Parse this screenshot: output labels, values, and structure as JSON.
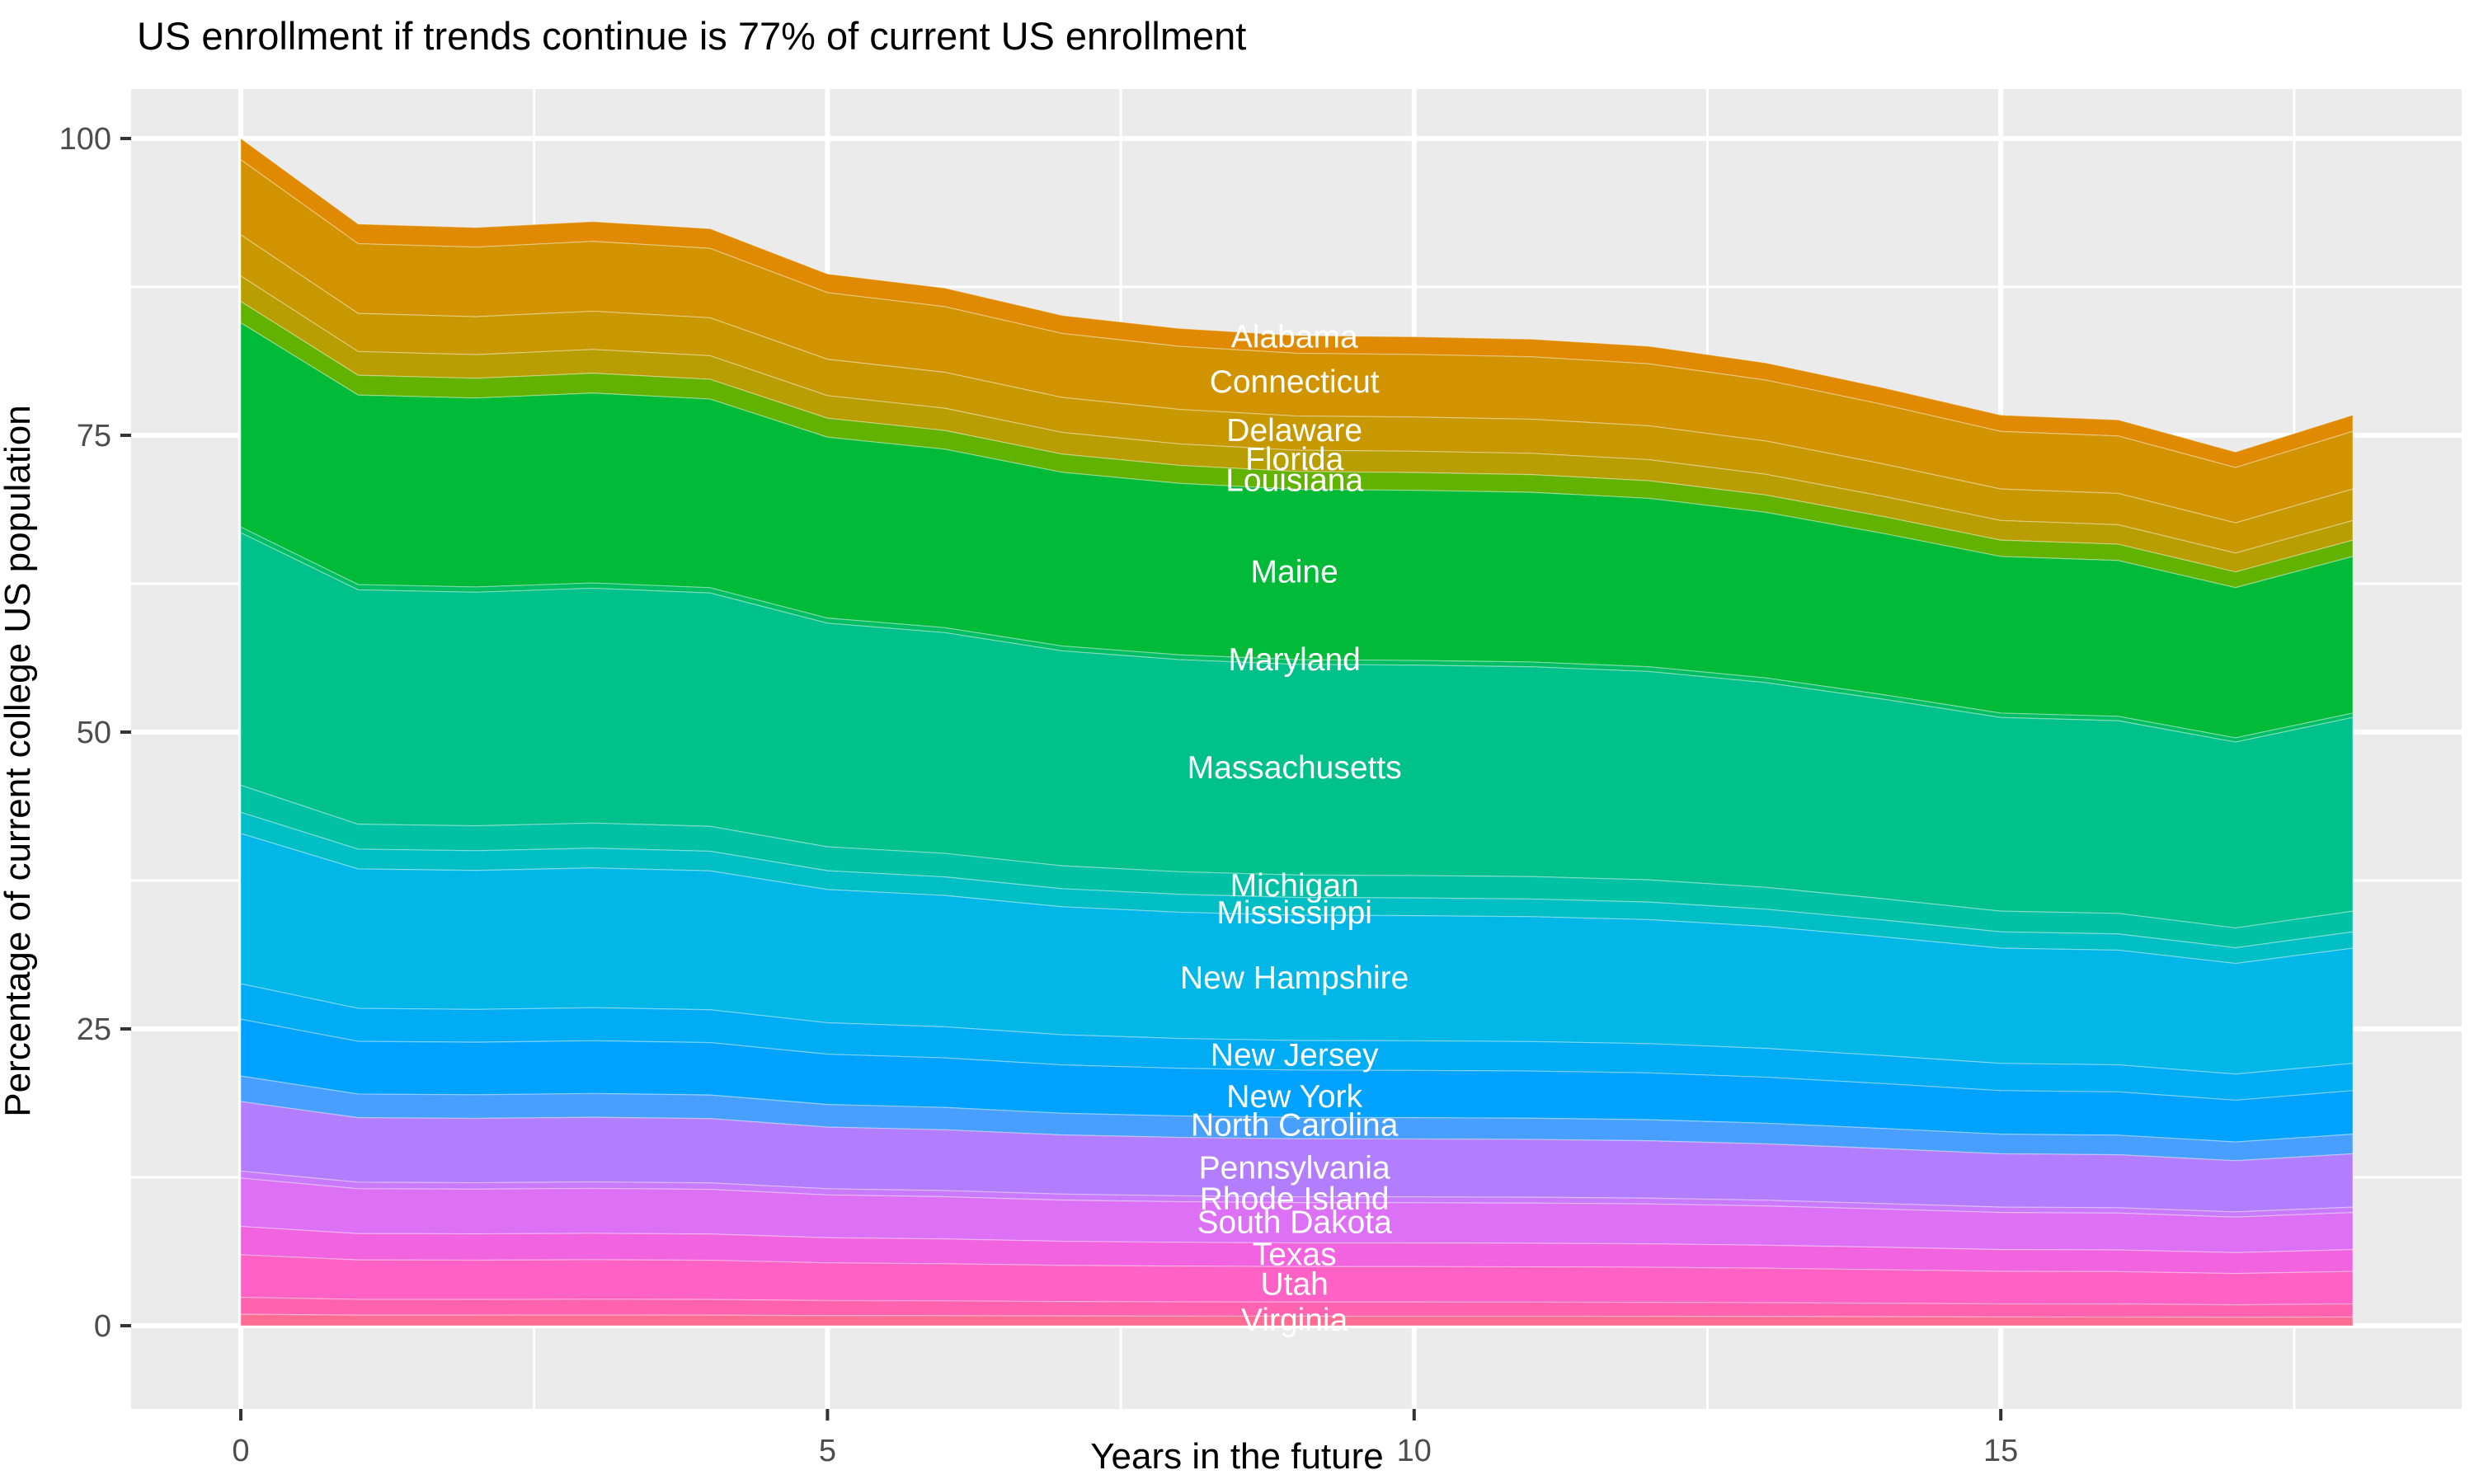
{
  "title": "US enrollment if trends continue is 77% of current US enrollment",
  "x_axis": {
    "title": "Years in the future",
    "tick_labels": [
      "0",
      "5",
      "10",
      "15"
    ]
  },
  "y_axis": {
    "title": "Percentage of current college US population",
    "tick_labels": [
      "0",
      "25",
      "50",
      "75",
      "100"
    ]
  },
  "colors": {
    "panel_background": "#EBEBEB",
    "gridline": "#FFFFFF",
    "tick_mark": "#333333",
    "tick_label": "#4D4D4D",
    "band_label_text": "#FFFFFF"
  },
  "chart_data": {
    "type": "area",
    "stacked": true,
    "title": "US enrollment if trends continue is 77% of current US enrollment",
    "xlabel": "Years in the future",
    "ylabel": "Percentage of current college US population",
    "xlim": [
      -0.94,
      18.93
    ],
    "ylim": [
      -7,
      104
    ],
    "grid": "on",
    "legend": "none",
    "x": [
      0,
      1,
      2,
      3,
      4,
      5,
      6,
      7,
      8,
      9,
      10,
      11,
      12,
      13,
      14,
      15,
      16,
      17,
      18
    ],
    "total_percent": [
      100,
      92.8,
      92.5,
      93.0,
      92.4,
      88.6,
      87.4,
      85.1,
      84.0,
      83.4,
      83.3,
      83.1,
      82.5,
      81.1,
      79.0,
      76.7,
      76.3,
      73.6,
      76.7
    ],
    "x_ticks": [
      0,
      5,
      10,
      15
    ],
    "x_minor_ticks": [
      2.5,
      7.5,
      12.5,
      17.5
    ],
    "y_ticks": [
      0,
      25,
      50,
      75,
      100
    ],
    "y_minor_ticks": [
      12.5,
      37.5,
      62.5,
      87.5
    ],
    "label_column_x_year": 8.98,
    "series": [
      {
        "name": "Alabama",
        "color": "#DF8A00",
        "f_top": 1.0,
        "f_bot": 0.9821,
        "label_v": 83.3
      },
      {
        "name": "Connecticut",
        "color": "#D19300",
        "f_top": 0.9821,
        "f_bot": 0.9188,
        "label_v": 79.5
      },
      {
        "name": "Delaware",
        "color": "#C89800",
        "f_top": 0.9188,
        "f_bot": 0.8842,
        "label_v": 75.4
      },
      {
        "name": "Florida",
        "color": "#B89E00",
        "f_top": 0.8842,
        "f_bot": 0.8627,
        "label_v": 73.0
      },
      {
        "name": "Louisiana",
        "color": "#62B200",
        "f_top": 0.8627,
        "f_bot": 0.8447,
        "label_v": 71.2
      },
      {
        "name": "Maine",
        "color": "#00BA38",
        "f_top": 0.8447,
        "f_bot": 0.6727,
        "label_v": 63.5
      },
      {
        "name": "Maryland",
        "color": "#00BE63",
        "f_top": 0.6727,
        "f_bot": 0.6679,
        "label_v": 56.1
      },
      {
        "name": "Massachusetts",
        "color": "#00C08B",
        "f_top": 0.6679,
        "f_bot": 0.4552,
        "label_v": 47.0
      },
      {
        "name": "Michigan",
        "color": "#00C1A4",
        "f_top": 0.4552,
        "f_bot": 0.4325,
        "label_v": 37.1
      },
      {
        "name": "Mississippi",
        "color": "#00BFC4",
        "f_top": 0.4325,
        "f_bot": 0.4146,
        "label_v": 34.8
      },
      {
        "name": "New Hampshire",
        "color": "#00B7E8",
        "f_top": 0.4146,
        "f_bot": 0.288,
        "label_v": 29.3
      },
      {
        "name": "New Jersey",
        "color": "#00ACF3",
        "f_top": 0.288,
        "f_bot": 0.2581,
        "label_v": 22.8
      },
      {
        "name": "New York",
        "color": "#00A2FF",
        "f_top": 0.2581,
        "f_bot": 0.2103,
        "label_v": 19.3
      },
      {
        "name": "North Carolina",
        "color": "#489FFF",
        "f_top": 0.2103,
        "f_bot": 0.1888,
        "label_v": 16.9
      },
      {
        "name": "Pennsylvania",
        "color": "#B27EFF",
        "f_top": 0.1888,
        "f_bot": 0.1302,
        "label_v": 13.3
      },
      {
        "name": "Rhode Island",
        "color": "#C97AFF",
        "f_top": 0.1302,
        "f_bot": 0.1243,
        "label_v": 10.7
      },
      {
        "name": "South Dakota",
        "color": "#DC71F5",
        "f_top": 0.1243,
        "f_bot": 0.0836,
        "label_v": 8.7
      },
      {
        "name": "Texas",
        "color": "#F163DF",
        "f_top": 0.0836,
        "f_bot": 0.0597,
        "label_v": 6.0
      },
      {
        "name": "Utah",
        "color": "#FF61C5",
        "f_top": 0.0597,
        "f_bot": 0.0239,
        "label_v": 3.5
      },
      {
        "name": "",
        "color": "#FF62AE",
        "f_top": 0.0239,
        "f_bot": 0.0096,
        "label_v": null
      },
      {
        "name": "Virginia",
        "color": "#FF6C92",
        "f_top": 0.0096,
        "f_bot": 0.0,
        "label_v": 0.5
      }
    ]
  }
}
